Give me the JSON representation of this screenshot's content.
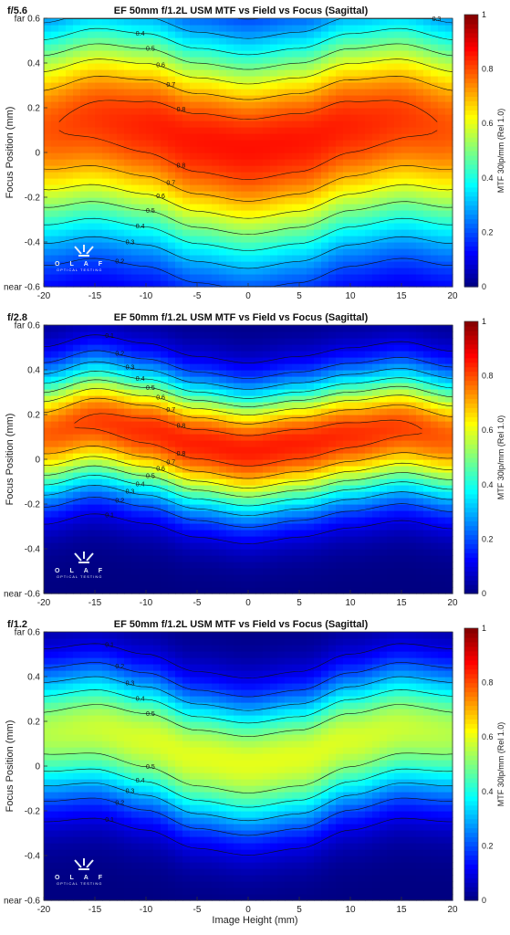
{
  "chart_data": [
    {
      "type": "heatmap",
      "aperture_label": "f/5.6",
      "title": "EF 50mm f/1.2L USM MTF vs Field vs Focus (Sagittal)",
      "xlabel": "",
      "ylabel": "Focus Position (mm)",
      "colorbar_label": "MTF 30lp/mm (Rel 1.0)",
      "xlim": [
        -20,
        20
      ],
      "ylim": [
        -0.6,
        0.6
      ],
      "clim": [
        0,
        1
      ],
      "x_ticks": [
        -20,
        -15,
        -10,
        -5,
        0,
        5,
        10,
        15,
        20
      ],
      "y_ticks": [
        "far 0.6",
        "0.4",
        "0.2",
        "0",
        "-0.2",
        "-0.4",
        "near -0.6"
      ],
      "y_tick_values": [
        0.6,
        0.4,
        0.2,
        0,
        -0.2,
        -0.4,
        -0.6
      ],
      "colorbar_ticks": [
        "0",
        "0.2",
        "0.4",
        "0.6",
        "0.8",
        "1"
      ],
      "contour_levels": [
        0.1,
        0.2,
        0.3,
        0.4,
        0.5,
        0.6,
        0.7,
        0.8
      ],
      "surface": {
        "peak_mtf": 0.86,
        "best_focus_by_field": {
          "x": [
            -20,
            -15,
            -10,
            -5,
            0,
            5,
            10,
            15,
            20
          ],
          "focus": [
            0.11,
            0.15,
            0.12,
            0.05,
            0.02,
            0.05,
            0.12,
            0.15,
            0.11
          ]
        },
        "falloff_above": 0.5,
        "falloff_below": 0.55
      }
    },
    {
      "type": "heatmap",
      "aperture_label": "f/2.8",
      "title": "EF 50mm f/1.2L USM MTF vs Field vs Focus (Sagittal)",
      "xlabel": "",
      "ylabel": "Focus Position (mm)",
      "colorbar_label": "MTF 30lp/mm (Rel 1.0)",
      "xlim": [
        -20,
        20
      ],
      "ylim": [
        -0.6,
        0.6
      ],
      "clim": [
        0,
        1
      ],
      "x_ticks": [
        -20,
        -15,
        -10,
        -5,
        0,
        5,
        10,
        15,
        20
      ],
      "y_ticks": [
        "far 0.6",
        "0.4",
        "0.2",
        "0",
        "-0.2",
        "-0.4",
        "near -0.6"
      ],
      "y_tick_values": [
        0.6,
        0.4,
        0.2,
        0,
        -0.2,
        -0.4,
        -0.6
      ],
      "colorbar_ticks": [
        "0",
        "0.2",
        "0.4",
        "0.6",
        "0.8",
        "1"
      ],
      "contour_levels": [
        0.1,
        0.2,
        0.3,
        0.4,
        0.5,
        0.6,
        0.7,
        0.8
      ],
      "surface": {
        "peak_mtf": 0.85,
        "best_focus_by_field": {
          "x": [
            -20,
            -15,
            -10,
            -5,
            0,
            5,
            10,
            15,
            20
          ],
          "focus": [
            0.12,
            0.17,
            0.13,
            0.07,
            0.04,
            0.07,
            0.11,
            0.14,
            0.1
          ]
        },
        "falloff_above": 0.28,
        "falloff_below": 0.3
      }
    },
    {
      "type": "heatmap",
      "aperture_label": "f/1.2",
      "title": "EF 50mm f/1.2L USM MTF vs Field vs Focus (Sagittal)",
      "xlabel": "Image Height (mm)",
      "ylabel": "Focus Position (mm)",
      "colorbar_label": "MTF 30lp/mm (Rel 1.0)",
      "xlim": [
        -20,
        20
      ],
      "ylim": [
        -0.6,
        0.6
      ],
      "clim": [
        0,
        1
      ],
      "x_ticks": [
        -20,
        -15,
        -10,
        -5,
        0,
        5,
        10,
        15,
        20
      ],
      "y_ticks": [
        "far 0.6",
        "0.4",
        "0.2",
        "0",
        "-0.2",
        "-0.4",
        "near -0.6"
      ],
      "y_tick_values": [
        0.6,
        0.4,
        0.2,
        0,
        -0.2,
        -0.4,
        -0.6
      ],
      "colorbar_ticks": [
        "0",
        "0.2",
        "0.4",
        "0.6",
        "0.8",
        "1"
      ],
      "contour_levels": [
        0.1,
        0.2,
        0.3,
        0.4,
        0.5,
        0.6
      ],
      "surface": {
        "peak_mtf": 0.6,
        "best_focus_by_field": {
          "x": [
            -20,
            -15,
            -10,
            -5,
            0,
            5,
            10,
            15,
            20
          ],
          "focus": [
            0.15,
            0.17,
            0.12,
            0.04,
            0.01,
            0.04,
            0.12,
            0.17,
            0.15
          ]
        },
        "falloff_above": 0.3,
        "falloff_below": 0.32
      }
    }
  ],
  "logo": {
    "letters": "OLAF",
    "tagline": "OPTICAL TESTING"
  }
}
